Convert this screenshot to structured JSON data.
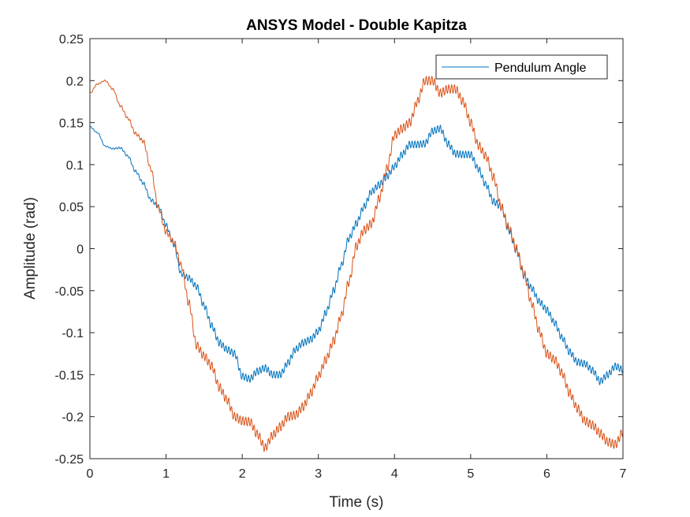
{
  "chart_data": {
    "type": "line",
    "title": "ANSYS Model - Double Kapitza",
    "xlabel": "Time (s)",
    "ylabel": "Amplitude (rad)",
    "xlim": [
      0,
      7
    ],
    "ylim": [
      -0.25,
      0.25
    ],
    "xticks": [
      0,
      1,
      2,
      3,
      4,
      5,
      6,
      7
    ],
    "xtick_labels": [
      "0",
      "1",
      "2",
      "3",
      "4",
      "5",
      "6",
      "7"
    ],
    "yticks": [
      -0.25,
      -0.2,
      -0.15,
      -0.1,
      -0.05,
      0,
      0.05,
      0.1,
      0.15,
      0.2,
      0.25
    ],
    "ytick_labels": [
      "-0.25",
      "-0.2",
      "-0.15",
      "-0.1",
      "-0.05",
      "0",
      "0.05",
      "0.1",
      "0.15",
      "0.2",
      "0.25"
    ],
    "grid": false,
    "legend_position": "top-right",
    "series": [
      {
        "name": "Pendulum Angle",
        "color": "#0072BD",
        "ripple": 0.004,
        "x": [
          0,
          0.1,
          0.2,
          0.3,
          0.4,
          0.5,
          0.6,
          0.7,
          0.8,
          0.9,
          1.0,
          1.1,
          1.2,
          1.3,
          1.4,
          1.5,
          1.6,
          1.7,
          1.8,
          1.9,
          2.0,
          2.1,
          2.2,
          2.3,
          2.4,
          2.5,
          2.6,
          2.7,
          2.8,
          2.9,
          3.0,
          3.1,
          3.2,
          3.3,
          3.4,
          3.5,
          3.6,
          3.7,
          3.8,
          3.9,
          4.0,
          4.1,
          4.2,
          4.3,
          4.4,
          4.5,
          4.6,
          4.7,
          4.8,
          4.9,
          5.0,
          5.1,
          5.2,
          5.3,
          5.4,
          5.5,
          5.6,
          5.7,
          5.8,
          5.9,
          6.0,
          6.1,
          6.2,
          6.3,
          6.4,
          6.5,
          6.6,
          6.7,
          6.8,
          6.9,
          7.0
        ],
        "y": [
          0.145,
          0.138,
          0.122,
          0.119,
          0.12,
          0.11,
          0.092,
          0.078,
          0.058,
          0.05,
          0.028,
          0.005,
          -0.03,
          -0.035,
          -0.045,
          -0.068,
          -0.092,
          -0.112,
          -0.12,
          -0.125,
          -0.152,
          -0.155,
          -0.146,
          -0.142,
          -0.15,
          -0.15,
          -0.136,
          -0.12,
          -0.112,
          -0.108,
          -0.098,
          -0.076,
          -0.05,
          -0.02,
          0.012,
          0.03,
          0.05,
          0.068,
          0.076,
          0.086,
          0.098,
          0.112,
          0.124,
          0.124,
          0.125,
          0.14,
          0.143,
          0.125,
          0.113,
          0.112,
          0.112,
          0.095,
          0.076,
          0.056,
          0.05,
          0.022,
          -0.002,
          -0.032,
          -0.047,
          -0.063,
          -0.073,
          -0.088,
          -0.106,
          -0.123,
          -0.135,
          -0.137,
          -0.145,
          -0.158,
          -0.15,
          -0.14,
          -0.144
        ]
      },
      {
        "name": "",
        "color": "#D95319",
        "ripple": 0.005,
        "x": [
          0,
          0.1,
          0.2,
          0.3,
          0.4,
          0.5,
          0.6,
          0.7,
          0.8,
          0.9,
          1.0,
          1.1,
          1.2,
          1.3,
          1.4,
          1.5,
          1.6,
          1.7,
          1.8,
          1.9,
          2.0,
          2.1,
          2.2,
          2.3,
          2.4,
          2.5,
          2.6,
          2.7,
          2.8,
          2.9,
          3.0,
          3.1,
          3.2,
          3.3,
          3.4,
          3.5,
          3.6,
          3.7,
          3.8,
          3.9,
          4.0,
          4.1,
          4.2,
          4.3,
          4.4,
          4.5,
          4.6,
          4.7,
          4.8,
          4.9,
          5.0,
          5.1,
          5.2,
          5.3,
          5.4,
          5.5,
          5.6,
          5.7,
          5.8,
          5.9,
          6.0,
          6.1,
          6.2,
          6.3,
          6.4,
          6.5,
          6.6,
          6.7,
          6.8,
          6.9,
          7.0
        ],
        "y": [
          0.185,
          0.196,
          0.2,
          0.19,
          0.17,
          0.155,
          0.137,
          0.128,
          0.095,
          0.048,
          0.02,
          0.008,
          -0.02,
          -0.065,
          -0.115,
          -0.128,
          -0.14,
          -0.165,
          -0.18,
          -0.2,
          -0.205,
          -0.206,
          -0.221,
          -0.237,
          -0.222,
          -0.212,
          -0.2,
          -0.198,
          -0.188,
          -0.172,
          -0.152,
          -0.132,
          -0.11,
          -0.08,
          -0.04,
          0.003,
          0.022,
          0.03,
          0.06,
          0.095,
          0.135,
          0.143,
          0.15,
          0.175,
          0.2,
          0.2,
          0.185,
          0.19,
          0.19,
          0.175,
          0.15,
          0.123,
          0.11,
          0.085,
          0.05,
          0.025,
          0.0,
          -0.03,
          -0.065,
          -0.098,
          -0.125,
          -0.132,
          -0.148,
          -0.172,
          -0.19,
          -0.205,
          -0.21,
          -0.22,
          -0.23,
          -0.233,
          -0.218
        ]
      }
    ]
  }
}
